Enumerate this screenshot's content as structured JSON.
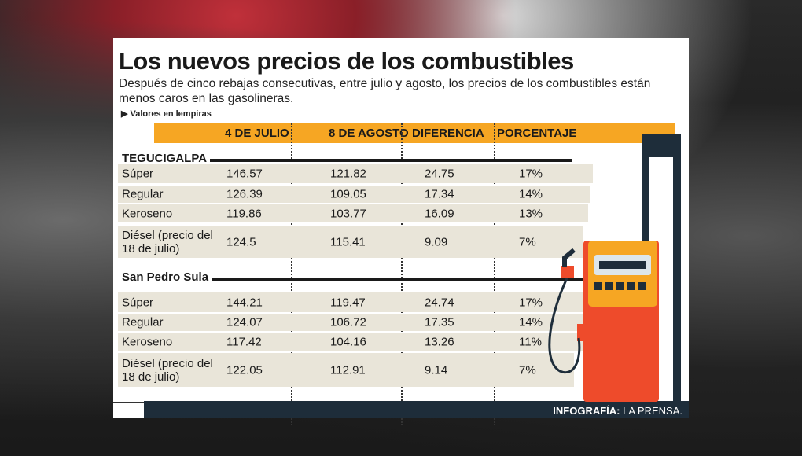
{
  "title": "Los nuevos precios de los combustibles",
  "subtitle": "Después de cinco rebajas consecutivas, entre julio y agosto, los precios de los combustibles están menos caros en las gasolineras.",
  "unit_note": "Valores en lempiras",
  "columns": [
    "4 DE JULIO",
    "8 DE AGOSTO",
    "DIFERENCIA",
    "PORCENTAJE"
  ],
  "sections": [
    {
      "city": "TEGUCIGALPA",
      "rows": [
        {
          "fuel": "Súper",
          "c1": "146.57",
          "c2": "121.82",
          "c3": "24.75",
          "c4": "17%"
        },
        {
          "fuel": "Regular",
          "c1": "126.39",
          "c2": "109.05",
          "c3": "17.34",
          "c4": "14%"
        },
        {
          "fuel": "Keroseno",
          "c1": "119.86",
          "c2": "103.77",
          "c3": "16.09",
          "c4": "13%"
        },
        {
          "fuel": "Diésel (precio del 18 de julio)",
          "c1": "124.5",
          "c2": "115.41",
          "c3": "9.09",
          "c4": "7%"
        }
      ]
    },
    {
      "city": "San Pedro Sula",
      "rows": [
        {
          "fuel": "Súper",
          "c1": "144.21",
          "c2": "119.47",
          "c3": "24.74",
          "c4": "17%"
        },
        {
          "fuel": "Regular",
          "c1": "124.07",
          "c2": "106.72",
          "c3": "17.35",
          "c4": "14%"
        },
        {
          "fuel": "Keroseno",
          "c1": "117.42",
          "c2": "104.16",
          "c3": "13.26",
          "c4": "11%"
        },
        {
          "fuel": "Diésel (precio del 18 de julio)",
          "c1": "122.05",
          "c2": "112.91",
          "c3": "9.14",
          "c4": "7%"
        }
      ]
    }
  ],
  "credit": {
    "label": "INFOGRAFÍA:",
    "source": "LA PRENSA."
  },
  "colors": {
    "header": "#f6a623",
    "row": "#e9e5d9",
    "footer": "#1e2d3a",
    "pump_red": "#ee4b2b",
    "pump_yellow": "#f6a623"
  }
}
